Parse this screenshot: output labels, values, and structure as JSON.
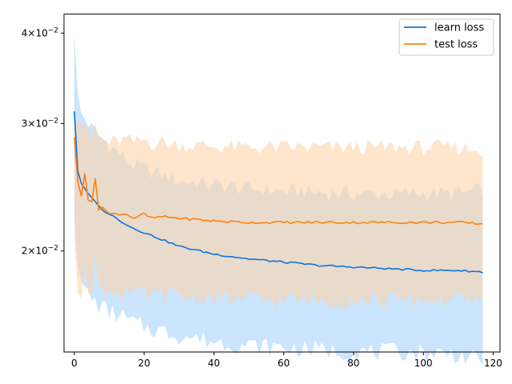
{
  "chart_data": {
    "type": "line",
    "title": "",
    "xlabel": "",
    "ylabel": "",
    "xlim": [
      -2.95,
      121.95
    ],
    "ylim": [
      0.0145,
      0.0425
    ],
    "yscale": "log",
    "xticks": [
      0,
      20,
      40,
      60,
      80,
      100,
      120
    ],
    "xtick_labels": [
      "0",
      "20",
      "40",
      "60",
      "80",
      "100",
      "120"
    ],
    "yticks": [
      0.02,
      0.03,
      0.04
    ],
    "ytick_labels": [
      {
        "base": "2",
        "sup": "−2"
      },
      {
        "base": "3",
        "sup": "−2"
      },
      {
        "base": "4",
        "sup": "−2"
      }
    ],
    "legend_position": "upper right",
    "grid": false,
    "series": [
      {
        "name": "learn loss",
        "color": "#0a74e1",
        "band_color": "#9ecffb",
        "x": [
          0,
          1,
          2,
          4,
          6,
          8,
          10,
          14,
          16,
          20,
          30,
          40,
          50,
          60,
          70,
          80,
          90,
          100,
          110,
          117
        ],
        "mean": [
          0.0312,
          0.0258,
          0.0248,
          0.024,
          0.0234,
          0.0228,
          0.0225,
          0.0219,
          0.0216,
          0.0212,
          0.0203,
          0.0198,
          0.0195,
          0.0193,
          0.0191,
          0.019,
          0.0189,
          0.0188,
          0.0188,
          0.0187
        ],
        "upper": [
          0.04,
          0.033,
          0.031,
          0.03,
          0.0292,
          0.0286,
          0.028,
          0.027,
          0.0264,
          0.026,
          0.025,
          0.0247,
          0.0244,
          0.0242,
          0.0241,
          0.024,
          0.024,
          0.024,
          0.024,
          0.0243
        ],
        "lower": [
          0.0225,
          0.019,
          0.0182,
          0.0174,
          0.017,
          0.0167,
          0.0165,
          0.0162,
          0.016,
          0.0157,
          0.0153,
          0.015,
          0.0148,
          0.0147,
          0.0146,
          0.0145,
          0.0145,
          0.0145,
          0.0144,
          0.014
        ]
      },
      {
        "name": "test loss",
        "color": "#ff7f0e",
        "band_color": "#fdd3aa",
        "x": [
          0,
          1,
          2,
          3,
          4,
          5,
          6,
          7,
          8,
          10,
          15,
          17,
          20,
          22,
          25,
          30,
          40,
          50,
          60,
          70,
          80,
          90,
          100,
          110,
          117
        ],
        "mean": [
          0.0287,
          0.025,
          0.0238,
          0.0256,
          0.0235,
          0.0234,
          0.0252,
          0.0228,
          0.023,
          0.0225,
          0.0225,
          0.0222,
          0.0225,
          0.0222,
          0.0223,
          0.0222,
          0.022,
          0.0219,
          0.0219,
          0.0219,
          0.0219,
          0.0219,
          0.0219,
          0.0219,
          0.0218
        ],
        "upper": [
          0.031,
          0.03,
          0.03,
          0.03,
          0.029,
          0.0285,
          0.03,
          0.0285,
          0.0285,
          0.0282,
          0.0285,
          0.0282,
          0.0285,
          0.0282,
          0.0283,
          0.028,
          0.0279,
          0.0278,
          0.0278,
          0.0278,
          0.0278,
          0.0278,
          0.0278,
          0.0278,
          0.0276
        ],
        "lower": [
          0.021,
          0.0175,
          0.0172,
          0.0195,
          0.018,
          0.0178,
          0.0195,
          0.0175,
          0.0178,
          0.0176,
          0.0176,
          0.0173,
          0.0175,
          0.0173,
          0.0174,
          0.0173,
          0.0172,
          0.0171,
          0.0171,
          0.0171,
          0.0171,
          0.0171,
          0.0171,
          0.0171,
          0.017
        ]
      }
    ]
  }
}
